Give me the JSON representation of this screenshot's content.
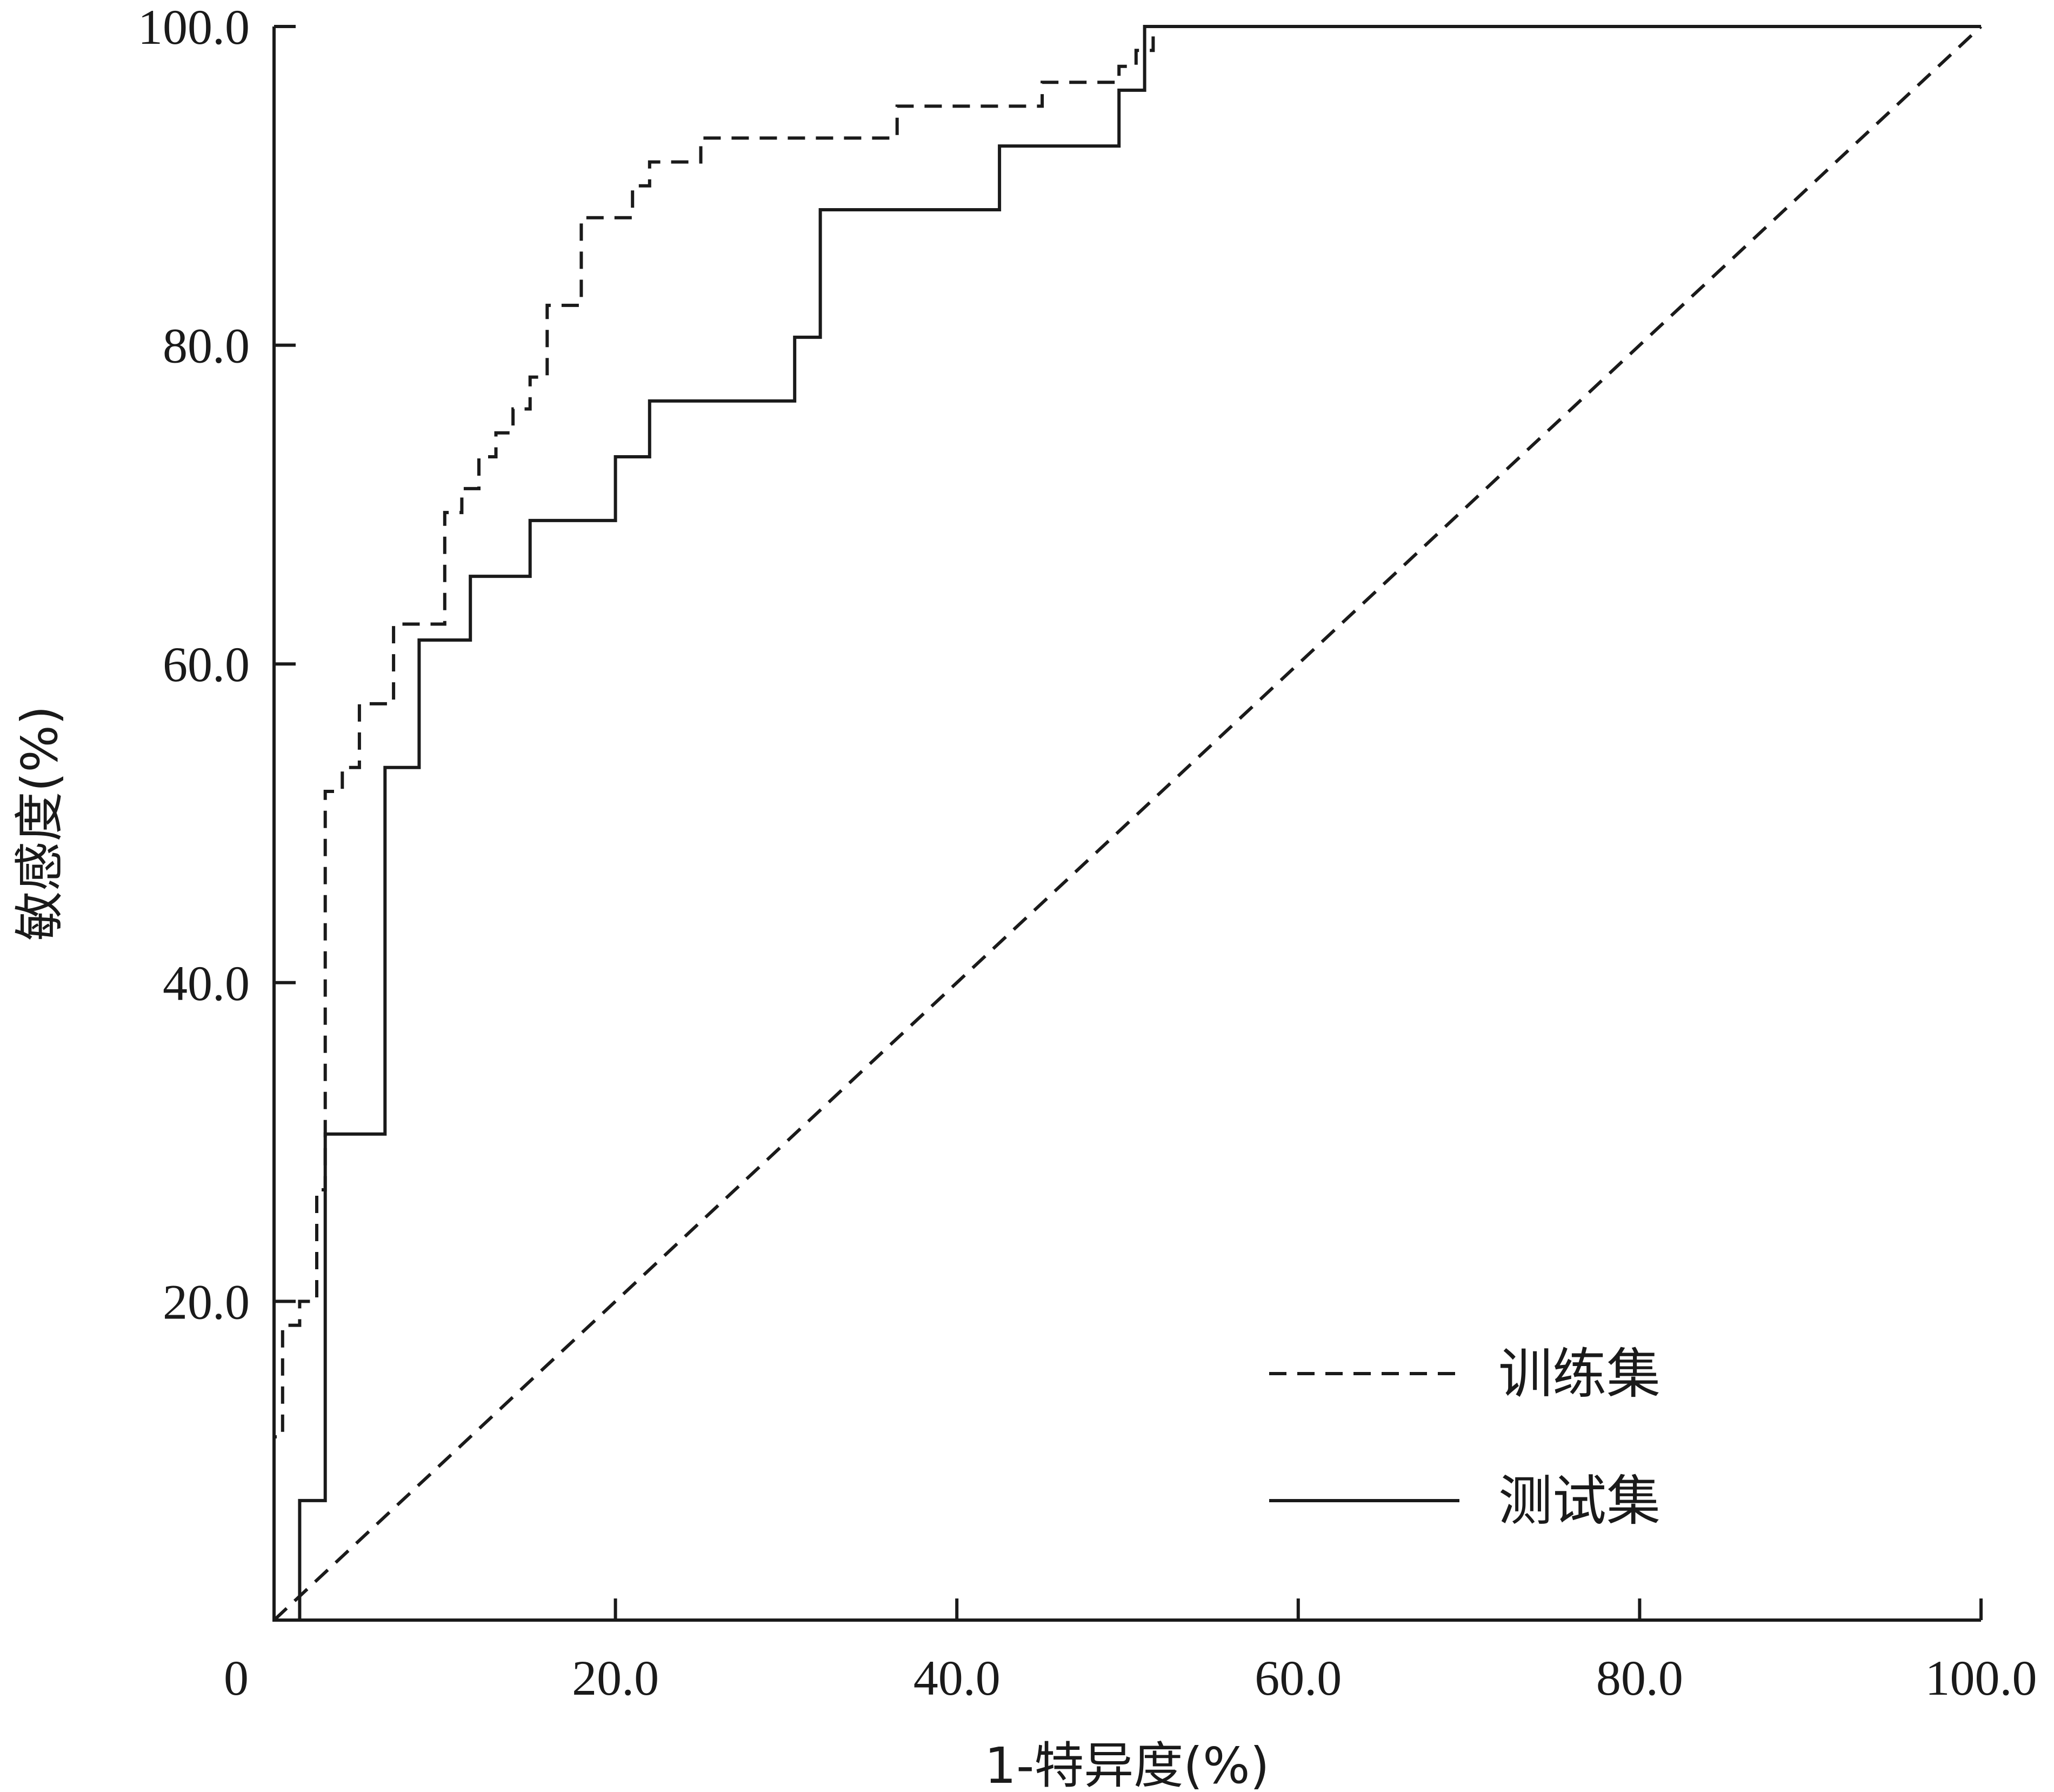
{
  "chart_data": {
    "type": "line",
    "title": "",
    "xlabel": "1-特异度(%)",
    "ylabel": "敏感度(%)",
    "xlim": [
      0,
      100
    ],
    "ylim": [
      0,
      100
    ],
    "x_ticks": [
      {
        "value": 0,
        "label": "0"
      },
      {
        "value": 20,
        "label": "20.0"
      },
      {
        "value": 40,
        "label": "40.0"
      },
      {
        "value": 60,
        "label": "60.0"
      },
      {
        "value": 80,
        "label": "80.0"
      },
      {
        "value": 100,
        "label": "100.0"
      }
    ],
    "y_ticks": [
      {
        "value": 20,
        "label": "20.0"
      },
      {
        "value": 40,
        "label": "40.0"
      },
      {
        "value": 60,
        "label": "60.0"
      },
      {
        "value": 80,
        "label": "80.0"
      },
      {
        "value": 100,
        "label": "100.0"
      }
    ],
    "grid": false,
    "legend_position": "bottom-right",
    "colors": {
      "line": "#1a1a1a",
      "background": "#ffffff"
    },
    "series": [
      {
        "name": "训练集",
        "style": "dashed",
        "x": [
          0,
          0,
          0.5,
          0.5,
          1.5,
          1.5,
          2.5,
          2.5,
          3,
          3,
          4,
          4,
          5,
          5,
          7,
          7,
          10,
          10,
          11,
          11,
          12,
          12,
          13,
          13,
          14,
          14,
          15,
          15,
          16,
          16,
          18,
          18,
          21,
          21,
          22,
          22,
          25,
          25,
          36.5,
          36.5,
          45,
          45,
          49.5,
          49.5,
          50.5,
          50.5,
          51.5,
          51.5,
          100
        ],
        "y": [
          0,
          11.5,
          11.5,
          18.5,
          18.5,
          20,
          20,
          27,
          27,
          52,
          52,
          53.5,
          53.5,
          57.5,
          57.5,
          62.5,
          62.5,
          69.5,
          69.5,
          71,
          71,
          73,
          73,
          74.5,
          74.5,
          76,
          76,
          78,
          78,
          82.5,
          82.5,
          88,
          88,
          90,
          90,
          91.5,
          91.5,
          93,
          93,
          95,
          95,
          96.5,
          96.5,
          97.5,
          97.5,
          98.5,
          98.5,
          100,
          100
        ]
      },
      {
        "name": "测试集",
        "style": "solid",
        "x": [
          0,
          0,
          1.5,
          1.5,
          3,
          3,
          6.5,
          6.5,
          8.5,
          8.5,
          11.5,
          11.5,
          15,
          15,
          20,
          20,
          22,
          22,
          30.5,
          30.5,
          32,
          32,
          42.5,
          42.5,
          49.5,
          49.5,
          51,
          51,
          100
        ],
        "y": [
          0,
          0,
          0,
          7.5,
          7.5,
          30.5,
          30.5,
          53.5,
          53.5,
          61.5,
          61.5,
          65.5,
          65.5,
          69,
          69,
          73,
          73,
          76.5,
          76.5,
          80.5,
          80.5,
          88.5,
          88.5,
          92.5,
          92.5,
          96,
          96,
          100,
          100
        ]
      },
      {
        "name": "",
        "style": "dashed",
        "role": "reference-diagonal",
        "x": [
          0,
          100
        ],
        "y": [
          0,
          100
        ]
      }
    ]
  }
}
